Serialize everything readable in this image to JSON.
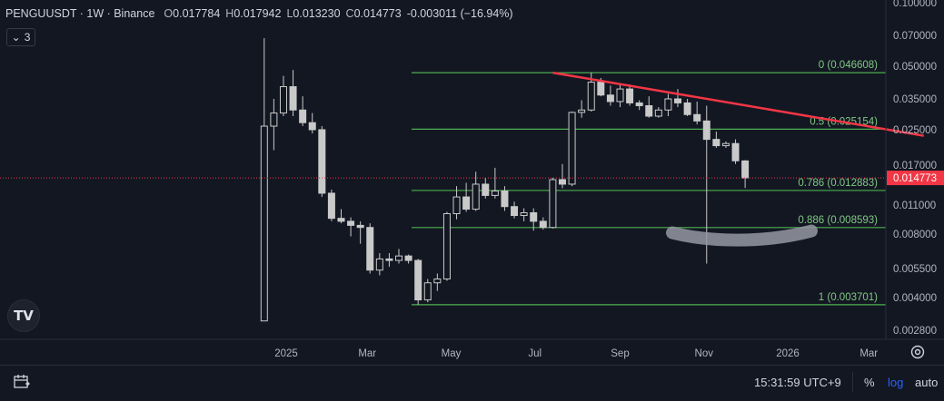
{
  "header": {
    "symbol": "PENGUUSDT · 1W · Binance",
    "o_label": "O",
    "o_value": "0.017784",
    "h_label": "H",
    "h_value": "0.017942",
    "l_label": "L",
    "l_value": "0.013230",
    "c_label": "C",
    "c_value": "0.014773",
    "change": "-0.003011 (−16.94%)",
    "indicator_count": "3"
  },
  "bottom": {
    "time": "15:31:59 UTC+9",
    "percent": "%",
    "log": "log",
    "auto": "auto"
  },
  "colors": {
    "background": "#131722",
    "candle_up": "#131722",
    "candle_body": "#c9c9c9",
    "fib_line": "#4caf50",
    "trendline": "#f23645",
    "current_price": "#f23645",
    "highlight": "#9598a1"
  },
  "chart_data": {
    "type": "candlestick",
    "symbol": "PENGUUSDT",
    "interval": "1W",
    "exchange": "Binance",
    "y_scale": "log",
    "y_ticks": [
      "0.100000",
      "0.070000",
      "0.050000",
      "0.035000",
      "0.025000",
      "0.017000",
      "0.011000",
      "0.008000",
      "0.005500",
      "0.004000",
      "0.002800"
    ],
    "x_ticks": [
      "2025",
      "Mar",
      "May",
      "Jul",
      "Sep",
      "Nov",
      "2026",
      "Mar"
    ],
    "current_price": "0.014773",
    "fib_levels": [
      {
        "label": "0 (0.046608)",
        "value": 0.046608
      },
      {
        "label": "0.5 (0.025154)",
        "value": 0.025154
      },
      {
        "label": "0.786 (0.012883)",
        "value": 0.012883
      },
      {
        "label": "0.886 (0.008593)",
        "value": 0.008593
      },
      {
        "label": "1 (0.003701)",
        "value": 0.003701
      }
    ],
    "trendline": {
      "start": {
        "date": "2025-07-14",
        "price": 0.0466
      },
      "end": {
        "date": "2026-04-10",
        "price": 0.0234
      }
    },
    "candles": [
      {
        "date": "2024-12-16",
        "o": 0.0031,
        "h": 0.068,
        "l": 0.0031,
        "c": 0.026
      },
      {
        "date": "2024-12-23",
        "o": 0.026,
        "h": 0.035,
        "l": 0.02,
        "c": 0.03
      },
      {
        "date": "2024-12-30",
        "o": 0.03,
        "h": 0.045,
        "l": 0.029,
        "c": 0.04
      },
      {
        "date": "2025-01-06",
        "o": 0.04,
        "h": 0.048,
        "l": 0.029,
        "c": 0.031
      },
      {
        "date": "2025-01-13",
        "o": 0.031,
        "h": 0.036,
        "l": 0.026,
        "c": 0.027
      },
      {
        "date": "2025-01-20",
        "o": 0.027,
        "h": 0.03,
        "l": 0.024,
        "c": 0.025
      },
      {
        "date": "2025-01-27",
        "o": 0.025,
        "h": 0.026,
        "l": 0.012,
        "c": 0.0125
      },
      {
        "date": "2025-02-03",
        "o": 0.0125,
        "h": 0.013,
        "l": 0.0092,
        "c": 0.0095
      },
      {
        "date": "2025-02-10",
        "o": 0.0095,
        "h": 0.0105,
        "l": 0.009,
        "c": 0.0092
      },
      {
        "date": "2025-02-17",
        "o": 0.0092,
        "h": 0.0096,
        "l": 0.0078,
        "c": 0.0088
      },
      {
        "date": "2025-02-24",
        "o": 0.0088,
        "h": 0.0092,
        "l": 0.0072,
        "c": 0.0086
      },
      {
        "date": "2025-03-03",
        "o": 0.0086,
        "h": 0.009,
        "l": 0.0052,
        "c": 0.0054
      },
      {
        "date": "2025-03-10",
        "o": 0.0054,
        "h": 0.0065,
        "l": 0.0051,
        "c": 0.0061
      },
      {
        "date": "2025-03-17",
        "o": 0.0061,
        "h": 0.0065,
        "l": 0.0056,
        "c": 0.006
      },
      {
        "date": "2025-03-24",
        "o": 0.006,
        "h": 0.0068,
        "l": 0.0058,
        "c": 0.0063
      },
      {
        "date": "2025-03-31",
        "o": 0.0063,
        "h": 0.0064,
        "l": 0.0058,
        "c": 0.006
      },
      {
        "date": "2025-04-07",
        "o": 0.006,
        "h": 0.0061,
        "l": 0.0037,
        "c": 0.0039
      },
      {
        "date": "2025-04-14",
        "o": 0.0039,
        "h": 0.0049,
        "l": 0.0038,
        "c": 0.0047
      },
      {
        "date": "2025-04-21",
        "o": 0.0047,
        "h": 0.0052,
        "l": 0.0043,
        "c": 0.0049
      },
      {
        "date": "2025-04-28",
        "o": 0.0049,
        "h": 0.0102,
        "l": 0.0048,
        "c": 0.01
      },
      {
        "date": "2025-05-05",
        "o": 0.01,
        "h": 0.0135,
        "l": 0.0094,
        "c": 0.012
      },
      {
        "date": "2025-05-12",
        "o": 0.012,
        "h": 0.014,
        "l": 0.0102,
        "c": 0.0105
      },
      {
        "date": "2025-05-19",
        "o": 0.0105,
        "h": 0.0158,
        "l": 0.0103,
        "c": 0.0138
      },
      {
        "date": "2025-05-26",
        "o": 0.0138,
        "h": 0.0148,
        "l": 0.0118,
        "c": 0.0122
      },
      {
        "date": "2025-06-02",
        "o": 0.0122,
        "h": 0.0165,
        "l": 0.0118,
        "c": 0.0128
      },
      {
        "date": "2025-06-09",
        "o": 0.0128,
        "h": 0.0135,
        "l": 0.0103,
        "c": 0.0108
      },
      {
        "date": "2025-06-16",
        "o": 0.0108,
        "h": 0.0114,
        "l": 0.0095,
        "c": 0.0098
      },
      {
        "date": "2025-06-23",
        "o": 0.0098,
        "h": 0.0106,
        "l": 0.0092,
        "c": 0.0101
      },
      {
        "date": "2025-06-30",
        "o": 0.0101,
        "h": 0.0106,
        "l": 0.0083,
        "c": 0.0092
      },
      {
        "date": "2025-07-07",
        "o": 0.0092,
        "h": 0.0096,
        "l": 0.0084,
        "c": 0.0086
      },
      {
        "date": "2025-07-14",
        "o": 0.0086,
        "h": 0.0148,
        "l": 0.0085,
        "c": 0.0145
      },
      {
        "date": "2025-07-21",
        "o": 0.0145,
        "h": 0.0172,
        "l": 0.0132,
        "c": 0.0138
      },
      {
        "date": "2025-07-28",
        "o": 0.0138,
        "h": 0.0305,
        "l": 0.0135,
        "c": 0.0302
      },
      {
        "date": "2025-08-04",
        "o": 0.0302,
        "h": 0.0345,
        "l": 0.0285,
        "c": 0.031
      },
      {
        "date": "2025-08-11",
        "o": 0.031,
        "h": 0.0466,
        "l": 0.0305,
        "c": 0.042
      },
      {
        "date": "2025-08-18",
        "o": 0.042,
        "h": 0.044,
        "l": 0.036,
        "c": 0.0365
      },
      {
        "date": "2025-08-25",
        "o": 0.0365,
        "h": 0.0405,
        "l": 0.0325,
        "c": 0.034
      },
      {
        "date": "2025-09-01",
        "o": 0.034,
        "h": 0.0415,
        "l": 0.032,
        "c": 0.039
      },
      {
        "date": "2025-09-08",
        "o": 0.039,
        "h": 0.041,
        "l": 0.0325,
        "c": 0.0335
      },
      {
        "date": "2025-09-15",
        "o": 0.0335,
        "h": 0.0345,
        "l": 0.031,
        "c": 0.0325
      },
      {
        "date": "2025-09-22",
        "o": 0.0325,
        "h": 0.036,
        "l": 0.0285,
        "c": 0.029
      },
      {
        "date": "2025-09-29",
        "o": 0.029,
        "h": 0.032,
        "l": 0.0285,
        "c": 0.031
      },
      {
        "date": "2025-10-06",
        "o": 0.031,
        "h": 0.037,
        "l": 0.029,
        "c": 0.035
      },
      {
        "date": "2025-10-13",
        "o": 0.035,
        "h": 0.039,
        "l": 0.032,
        "c": 0.0335
      },
      {
        "date": "2025-10-20",
        "o": 0.0335,
        "h": 0.035,
        "l": 0.029,
        "c": 0.0295
      },
      {
        "date": "2025-10-27",
        "o": 0.0295,
        "h": 0.034,
        "l": 0.0265,
        "c": 0.0275
      },
      {
        "date": "2025-11-03",
        "o": 0.0275,
        "h": 0.0325,
        "l": 0.0058,
        "c": 0.0225
      },
      {
        "date": "2025-11-10",
        "o": 0.0225,
        "h": 0.0245,
        "l": 0.0205,
        "c": 0.021
      },
      {
        "date": "2025-11-17",
        "o": 0.021,
        "h": 0.022,
        "l": 0.0205,
        "c": 0.0215
      },
      {
        "date": "2025-11-24",
        "o": 0.0215,
        "h": 0.0225,
        "l": 0.0172,
        "c": 0.0178
      },
      {
        "date": "2025-12-01",
        "o": 0.017784,
        "h": 0.017942,
        "l": 0.01323,
        "c": 0.014773
      }
    ]
  }
}
